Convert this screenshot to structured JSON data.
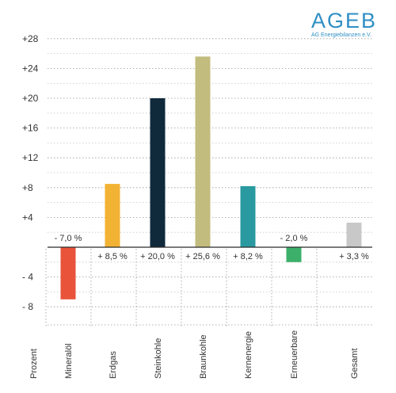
{
  "logo": {
    "name": "AGEB",
    "subtitle": "AG Energiebilanzen e.V."
  },
  "chart_data": {
    "type": "bar",
    "ylabel": "Prozent",
    "ylim": [
      -9,
      30
    ],
    "yticks": [
      -8,
      -4,
      4,
      8,
      12,
      16,
      20,
      24,
      28
    ],
    "ytick_labels": [
      "- 8",
      "- 4",
      "+4",
      "+8",
      "+12",
      "+16",
      "+20",
      "+24",
      "+28"
    ],
    "grid": true,
    "categories": [
      "Mineralöl",
      "Erdgas",
      "Steinkohle",
      "Braunkohle",
      "Kernenergie",
      "Erneuerbare",
      "Gesamt"
    ],
    "values": [
      -7.0,
      8.5,
      20.0,
      25.6,
      8.2,
      -2.0,
      3.3
    ],
    "value_labels": [
      "- 7,0 %",
      "+ 8,5 %",
      "+ 20,0 %",
      "+ 25,6 %",
      "+ 8,2 %",
      "- 2,0 %",
      "+ 3,3 %"
    ],
    "colors": [
      "#e8533a",
      "#f2b233",
      "#102a3c",
      "#c2bc7e",
      "#2a9aa0",
      "#3cb06a",
      "#c8c8c8"
    ]
  }
}
